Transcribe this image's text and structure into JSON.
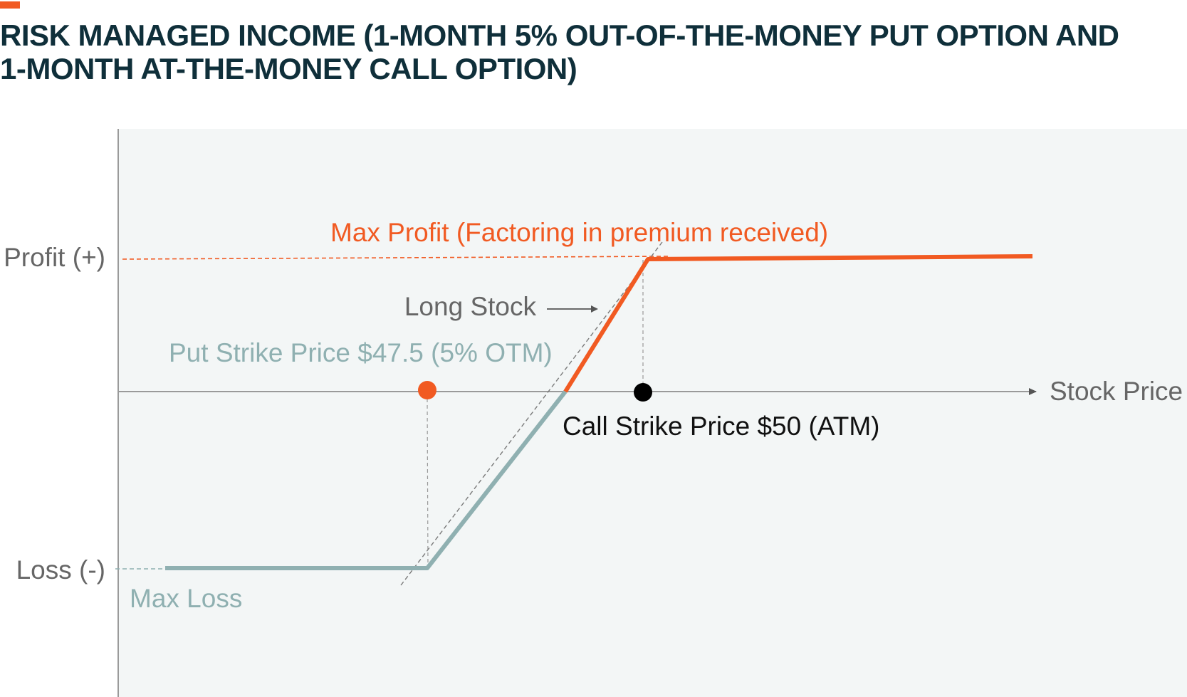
{
  "title": {
    "line1": "RISK MANAGED INCOME (1-MONTH 5% OUT-OF-THE-MONEY PUT OPTION AND",
    "line2": "1-MONTH AT-THE-MONEY CALL OPTION)"
  },
  "axes": {
    "profit_label": "Profit (+)",
    "loss_label": "Loss (-)",
    "x_label": "Stock Price"
  },
  "annotations": {
    "max_profit": "Max Profit (Factoring in premium received)",
    "long_stock": "Long Stock",
    "put_strike": "Put Strike Price $47.5 (5% OTM)",
    "call_strike": "Call Strike Price $50 (ATM)",
    "max_loss": "Max Loss"
  },
  "colors": {
    "accent": "#f15a22",
    "profit_line": "#f15a22",
    "loss_line": "#8fb0b1",
    "put_label": "#8fb0b1",
    "title": "#0f2f3a",
    "plot_bg": "#f3f6f6",
    "axis": "#9a9a9a",
    "call_marker": "#000000"
  }
}
